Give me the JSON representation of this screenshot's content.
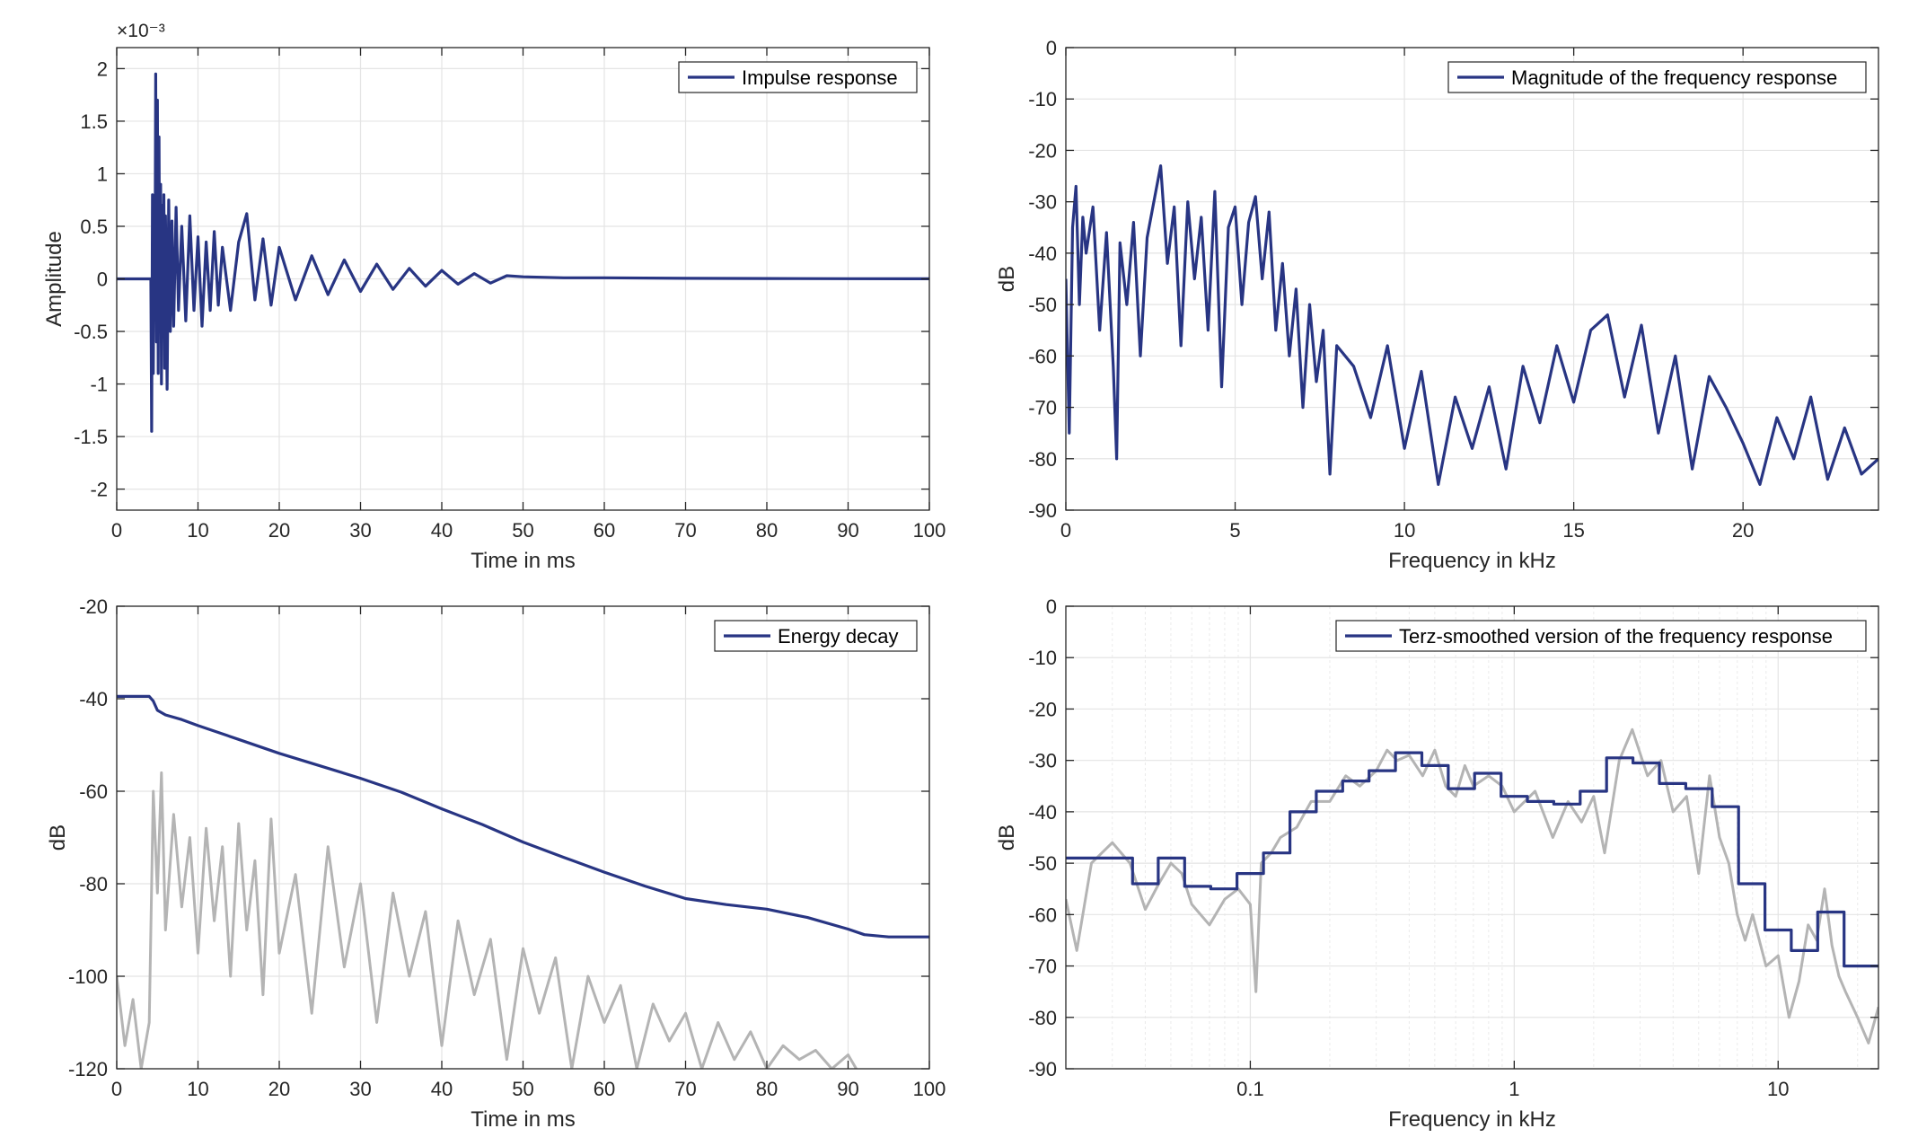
{
  "figure": {
    "background": "#ffffff",
    "series_color": "#283583",
    "gray_color": "#b4b4b4",
    "grid_color": "#e4e4e4"
  },
  "chart_data": [
    {
      "id": "impulse",
      "type": "line",
      "title": "",
      "xlabel": "Time in ms",
      "ylabel": "Amplitude",
      "exponent_label": "×10⁻³",
      "xlim": [
        0,
        100
      ],
      "ylim": [
        -2.2,
        2.2
      ],
      "xticks": [
        0,
        10,
        20,
        30,
        40,
        50,
        60,
        70,
        80,
        90,
        100
      ],
      "xtick_labels": [
        "0",
        "10",
        "20",
        "30",
        "40",
        "50",
        "60",
        "70",
        "80",
        "90",
        "100"
      ],
      "yticks": [
        -2,
        -1.5,
        -1,
        -0.5,
        0,
        0.5,
        1,
        1.5,
        2
      ],
      "ytick_labels": [
        "-2",
        "-1.5",
        "-1",
        "-0.5",
        "0",
        "0.5",
        "1",
        "1.5",
        "2"
      ],
      "x_scale": "linear",
      "grid": true,
      "legend_position": "top-right",
      "series": [
        {
          "name": "Impulse response",
          "color": "#283583",
          "x": [
            0,
            4.2,
            4.3,
            4.4,
            4.5,
            4.6,
            4.7,
            4.8,
            4.9,
            5.0,
            5.1,
            5.2,
            5.3,
            5.4,
            5.5,
            5.6,
            5.7,
            5.8,
            5.9,
            6.0,
            6.2,
            6.4,
            6.6,
            6.8,
            7.0,
            7.3,
            7.6,
            8.0,
            8.5,
            9.0,
            9.5,
            10,
            10.5,
            11,
            11.5,
            12,
            12.5,
            13,
            14,
            15,
            16,
            17,
            18,
            19,
            20,
            22,
            24,
            26,
            28,
            30,
            32,
            34,
            36,
            38,
            40,
            42,
            44,
            46,
            48,
            50,
            55,
            60,
            70,
            80,
            90,
            100
          ],
          "y": [
            0,
            0,
            -1.45,
            0.8,
            -0.9,
            0.5,
            -0.3,
            1.95,
            -0.6,
            1.7,
            -0.9,
            1.35,
            -0.5,
            0.9,
            -1.0,
            0.7,
            -0.3,
            0.8,
            -0.85,
            0.6,
            -1.05,
            0.75,
            -0.5,
            0.55,
            -0.45,
            0.68,
            -0.3,
            0.5,
            -0.4,
            0.6,
            -0.3,
            0.4,
            -0.45,
            0.35,
            -0.3,
            0.45,
            -0.25,
            0.3,
            -0.3,
            0.35,
            0.62,
            -0.2,
            0.38,
            -0.25,
            0.3,
            -0.2,
            0.22,
            -0.15,
            0.18,
            -0.12,
            0.14,
            -0.1,
            0.1,
            -0.07,
            0.08,
            -0.05,
            0.05,
            -0.04,
            0.03,
            0.02,
            0.01,
            0.01,
            0.005,
            0.003,
            0.002,
            0.001
          ]
        }
      ]
    },
    {
      "id": "magnitude",
      "type": "line",
      "title": "",
      "xlabel": "Frequency in kHz",
      "ylabel": "dB",
      "xlim": [
        0,
        24
      ],
      "ylim": [
        -90,
        0
      ],
      "xticks": [
        0,
        5,
        10,
        15,
        20
      ],
      "xtick_labels": [
        "0",
        "5",
        "10",
        "15",
        "20"
      ],
      "yticks": [
        -90,
        -80,
        -70,
        -60,
        -50,
        -40,
        -30,
        -20,
        -10,
        0
      ],
      "ytick_labels": [
        "-90",
        "-80",
        "-70",
        "-60",
        "-50",
        "-40",
        "-30",
        "-20",
        "-10",
        "0"
      ],
      "x_scale": "linear",
      "grid": true,
      "legend_position": "top-right",
      "series": [
        {
          "name": "Magnitude of the frequency response",
          "color": "#283583",
          "x": [
            0,
            0.1,
            0.2,
            0.3,
            0.4,
            0.5,
            0.6,
            0.8,
            1.0,
            1.2,
            1.4,
            1.5,
            1.6,
            1.8,
            2.0,
            2.2,
            2.4,
            2.6,
            2.8,
            3.0,
            3.2,
            3.4,
            3.6,
            3.8,
            4.0,
            4.2,
            4.4,
            4.6,
            4.8,
            5.0,
            5.2,
            5.4,
            5.6,
            5.8,
            6.0,
            6.2,
            6.4,
            6.6,
            6.8,
            7.0,
            7.2,
            7.4,
            7.6,
            7.8,
            8.0,
            8.5,
            9.0,
            9.5,
            10,
            10.5,
            11,
            11.5,
            12,
            12.5,
            13,
            13.5,
            14,
            14.5,
            15,
            15.5,
            16,
            16.5,
            17,
            17.5,
            18,
            18.5,
            19,
            19.5,
            20,
            20.5,
            21,
            21.5,
            22,
            22.5,
            23,
            23.5,
            24
          ],
          "y": [
            -45,
            -75,
            -35,
            -27,
            -50,
            -33,
            -40,
            -31,
            -55,
            -36,
            -62,
            -80,
            -38,
            -50,
            -34,
            -60,
            -37,
            -30,
            -23,
            -42,
            -31,
            -58,
            -30,
            -45,
            -33,
            -55,
            -28,
            -66,
            -35,
            -31,
            -50,
            -34,
            -29,
            -45,
            -32,
            -55,
            -42,
            -60,
            -47,
            -70,
            -50,
            -65,
            -55,
            -83,
            -58,
            -62,
            -72,
            -58,
            -78,
            -63,
            -85,
            -68,
            -78,
            -66,
            -82,
            -62,
            -73,
            -58,
            -69,
            -55,
            -52,
            -68,
            -54,
            -75,
            -60,
            -82,
            -64,
            -70,
            -77,
            -85,
            -72,
            -80,
            -68,
            -84,
            -74,
            -83,
            -80
          ]
        }
      ]
    },
    {
      "id": "energy",
      "type": "line",
      "title": "",
      "xlabel": "Time in ms",
      "ylabel": "dB",
      "xlim": [
        0,
        100
      ],
      "ylim": [
        -120,
        -20
      ],
      "xticks": [
        0,
        10,
        20,
        30,
        40,
        50,
        60,
        70,
        80,
        90,
        100
      ],
      "xtick_labels": [
        "0",
        "10",
        "20",
        "30",
        "40",
        "50",
        "60",
        "70",
        "80",
        "90",
        "100"
      ],
      "yticks": [
        -120,
        -100,
        -80,
        -60,
        -40,
        -20
      ],
      "ytick_labels": [
        "-120",
        "-100",
        "-80",
        "-60",
        "-40",
        "-20"
      ],
      "x_scale": "linear",
      "grid": true,
      "legend_position": "top-right",
      "series": [
        {
          "name": "",
          "color": "#b4b4b4",
          "x": [
            0,
            1,
            2,
            3,
            4,
            4.5,
            5,
            5.5,
            6,
            7,
            8,
            9,
            10,
            11,
            12,
            13,
            14,
            15,
            16,
            17,
            18,
            19,
            20,
            22,
            24,
            26,
            28,
            30,
            32,
            34,
            36,
            38,
            40,
            42,
            44,
            46,
            48,
            50,
            52,
            54,
            56,
            58,
            60,
            62,
            64,
            66,
            68,
            70,
            72,
            74,
            76,
            78,
            80,
            82,
            84,
            86,
            88,
            90,
            91
          ],
          "y": [
            -100,
            -115,
            -105,
            -120,
            -110,
            -60,
            -82,
            -56,
            -90,
            -65,
            -85,
            -70,
            -95,
            -68,
            -88,
            -72,
            -100,
            -67,
            -90,
            -75,
            -104,
            -66,
            -95,
            -78,
            -108,
            -72,
            -98,
            -80,
            -110,
            -82,
            -100,
            -86,
            -115,
            -88,
            -104,
            -92,
            -118,
            -94,
            -108,
            -96,
            -120,
            -100,
            -110,
            -102,
            -120,
            -106,
            -114,
            -108,
            -120,
            -110,
            -118,
            -112,
            -120,
            -115,
            -118,
            -116,
            -120,
            -117,
            -120
          ]
        },
        {
          "name": "Energy decay",
          "color": "#283583",
          "x": [
            0,
            2,
            4,
            4.5,
            5,
            6,
            8,
            10,
            12,
            15,
            20,
            25,
            30,
            35,
            40,
            45,
            48,
            50,
            55,
            60,
            65,
            70,
            75,
            80,
            85,
            90,
            92,
            95,
            100
          ],
          "y": [
            -39.5,
            -39.5,
            -39.5,
            -40.5,
            -42.5,
            -43.5,
            -44.5,
            -45.8,
            -47.0,
            -48.8,
            -51.8,
            -54.5,
            -57.2,
            -60.2,
            -63.8,
            -67.2,
            -69.5,
            -71.0,
            -74.3,
            -77.5,
            -80.5,
            -83.2,
            -84.5,
            -85.5,
            -87.3,
            -89.8,
            -91.0,
            -91.5,
            -91.5
          ]
        }
      ]
    },
    {
      "id": "terz",
      "type": "line",
      "title": "",
      "xlabel": "Frequency in kHz",
      "ylabel": "dB",
      "xlim": [
        0.02,
        24
      ],
      "ylim": [
        -90,
        0
      ],
      "xticks": [
        0.1,
        1,
        10
      ],
      "xtick_labels": [
        "0.1",
        "1",
        "10"
      ],
      "yticks": [
        -90,
        -80,
        -70,
        -60,
        -50,
        -40,
        -30,
        -20,
        -10,
        0
      ],
      "ytick_labels": [
        "-90",
        "-80",
        "-70",
        "-60",
        "-50",
        "-40",
        "-30",
        "-20",
        "-10",
        "0"
      ],
      "x_scale": "log",
      "grid": true,
      "legend_position": "top-right",
      "series": [
        {
          "name": "",
          "color": "#b4b4b4",
          "x": [
            0.02,
            0.022,
            0.025,
            0.03,
            0.035,
            0.04,
            0.045,
            0.05,
            0.055,
            0.06,
            0.07,
            0.08,
            0.09,
            0.1,
            0.105,
            0.11,
            0.12,
            0.13,
            0.15,
            0.17,
            0.2,
            0.23,
            0.26,
            0.3,
            0.33,
            0.36,
            0.4,
            0.45,
            0.5,
            0.55,
            0.6,
            0.65,
            0.7,
            0.8,
            0.9,
            1.0,
            1.2,
            1.4,
            1.6,
            1.8,
            2.0,
            2.2,
            2.5,
            2.8,
            3.2,
            3.6,
            4.0,
            4.5,
            5.0,
            5.5,
            6.0,
            6.5,
            7.0,
            7.5,
            8.0,
            9.0,
            10,
            11,
            12,
            13,
            14,
            15,
            16,
            17,
            18,
            20,
            22,
            24
          ],
          "y": [
            -57,
            -67,
            -50,
            -46,
            -50,
            -59,
            -54,
            -50,
            -52,
            -58,
            -62,
            -57,
            -55,
            -58,
            -75,
            -50,
            -48,
            -45,
            -43,
            -38,
            -38,
            -33,
            -35,
            -32,
            -28,
            -30,
            -29,
            -33,
            -28,
            -35,
            -37,
            -31,
            -35,
            -33,
            -35,
            -40,
            -36,
            -45,
            -38,
            -42,
            -37,
            -48,
            -30,
            -24,
            -33,
            -30,
            -40,
            -37,
            -52,
            -33,
            -45,
            -50,
            -60,
            -65,
            -60,
            -70,
            -68,
            -80,
            -73,
            -62,
            -65,
            -55,
            -66,
            -72,
            -75,
            -80,
            -85,
            -78
          ]
        },
        {
          "name": "Terz-smoothed version of the frequency response",
          "color": "#283583",
          "x": [
            0.02,
            0.0358,
            0.0358,
            0.0448,
            0.0448,
            0.0564,
            0.0564,
            0.0708,
            0.0708,
            0.089,
            0.089,
            0.1122,
            0.1122,
            0.1413,
            0.1413,
            0.1778,
            0.1778,
            0.2239,
            0.2239,
            0.2818,
            0.2818,
            0.3548,
            0.3548,
            0.4467,
            0.4467,
            0.5623,
            0.5623,
            0.7079,
            0.7079,
            0.8913,
            0.8913,
            1.122,
            1.122,
            1.4125,
            1.4125,
            1.7783,
            1.7783,
            2.2387,
            2.2387,
            2.8184,
            2.8184,
            3.5481,
            3.5481,
            4.4668,
            4.4668,
            5.6234,
            5.6234,
            7.0795,
            7.0795,
            8.9125,
            8.9125,
            11.22,
            11.22,
            14.125,
            14.125,
            17.783,
            17.783,
            24
          ],
          "y": [
            -49,
            -49,
            -54,
            -54,
            -49,
            -49,
            -54.5,
            -54.5,
            -55,
            -55,
            -52,
            -52,
            -48,
            -48,
            -40,
            -40,
            -36,
            -36,
            -34,
            -34,
            -32,
            -32,
            -28.5,
            -28.5,
            -31,
            -31,
            -35.5,
            -35.5,
            -32.5,
            -32.5,
            -37,
            -37,
            -38,
            -38,
            -38.5,
            -38.5,
            -36,
            -36,
            -29.5,
            -29.5,
            -30.5,
            -30.5,
            -34.5,
            -34.5,
            -35.5,
            -35.5,
            -39,
            -39,
            -54,
            -54,
            -63,
            -63,
            -67,
            -67,
            -59.5,
            -59.5,
            -70,
            -70
          ]
        }
      ]
    }
  ]
}
